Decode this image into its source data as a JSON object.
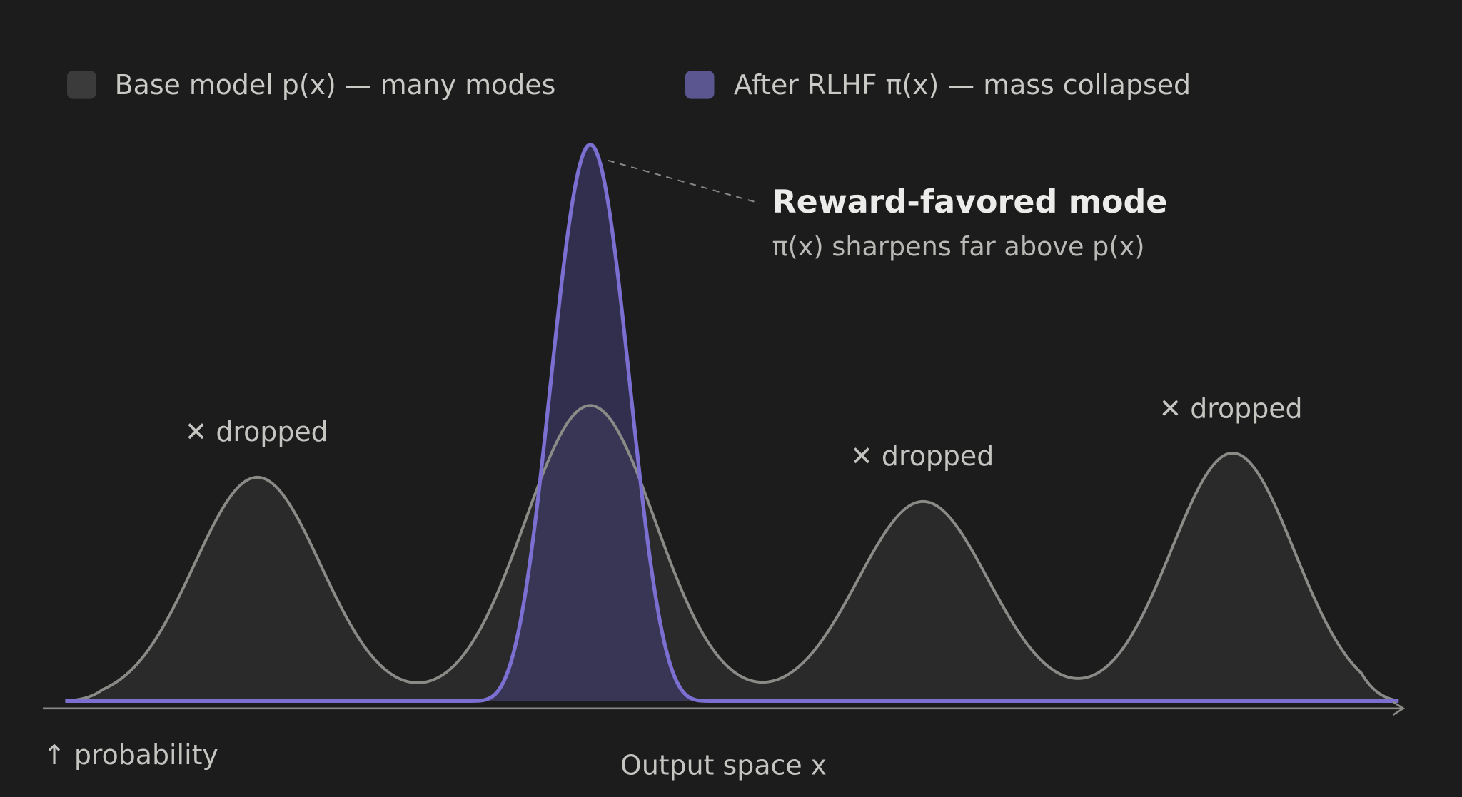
{
  "legend": {
    "items": [
      {
        "label": "Base model p(x) — many modes"
      },
      {
        "label": "After RLHF π(x) — mass collapsed"
      }
    ]
  },
  "annotation": {
    "title": "Reward-favored mode",
    "subtitle": "π(x) sharpens far above p(x)"
  },
  "mode_labels": [
    "✕ dropped",
    "✕ dropped",
    "✕ dropped"
  ],
  "axis": {
    "y_label": "↑ probability",
    "x_label": "Output space x"
  }
}
